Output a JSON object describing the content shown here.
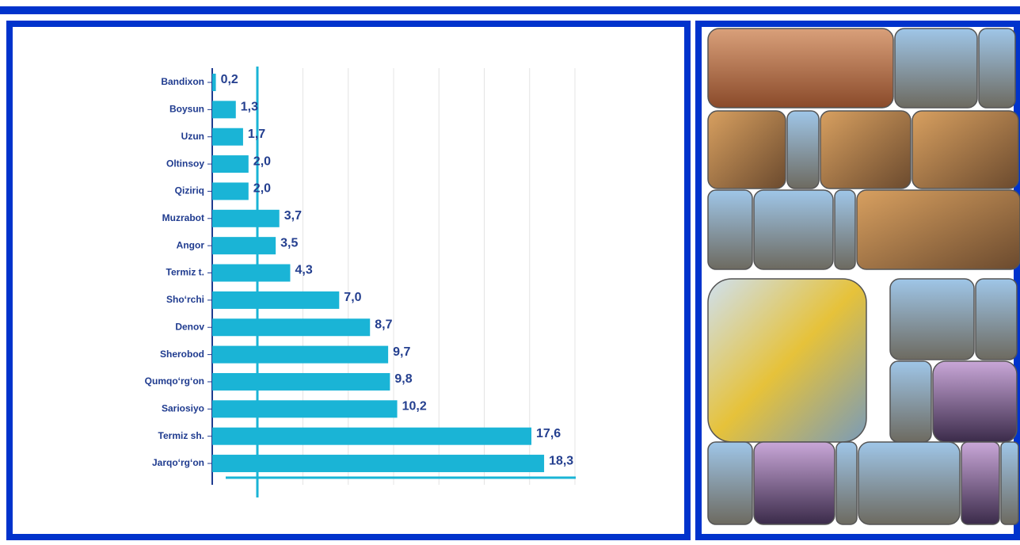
{
  "chart_data": {
    "type": "barh",
    "categories": [
      "Bandixon",
      "Boysun",
      "Uzun",
      "Oltinsoy",
      "Qiziriq",
      "Muzrabot",
      "Angor",
      "Termiz t.",
      "Sho‘rchi",
      "Denov",
      "Sherobod",
      "Qumqo‘rg‘on",
      "Sariosiyo",
      "Termiz sh.",
      "Jarqo‘rg‘on"
    ],
    "values": [
      0.2,
      1.3,
      1.7,
      2.0,
      2.0,
      3.7,
      3.5,
      4.3,
      7.0,
      8.7,
      9.7,
      9.8,
      10.2,
      17.6,
      18.3
    ],
    "value_labels": [
      "0,2",
      "1,3",
      "1,7",
      "2,0",
      "2,0",
      "3,7",
      "3,5",
      "4,3",
      "7,0",
      "8,7",
      "9,7",
      "9,8",
      "10,2",
      "17,6",
      "18,3"
    ],
    "color": "#1ab4d6",
    "xlim": [
      0,
      20
    ],
    "xticks": [
      0,
      2.5,
      5,
      7.5,
      10,
      12.5,
      15,
      17.5,
      20
    ],
    "grid": true
  }
}
